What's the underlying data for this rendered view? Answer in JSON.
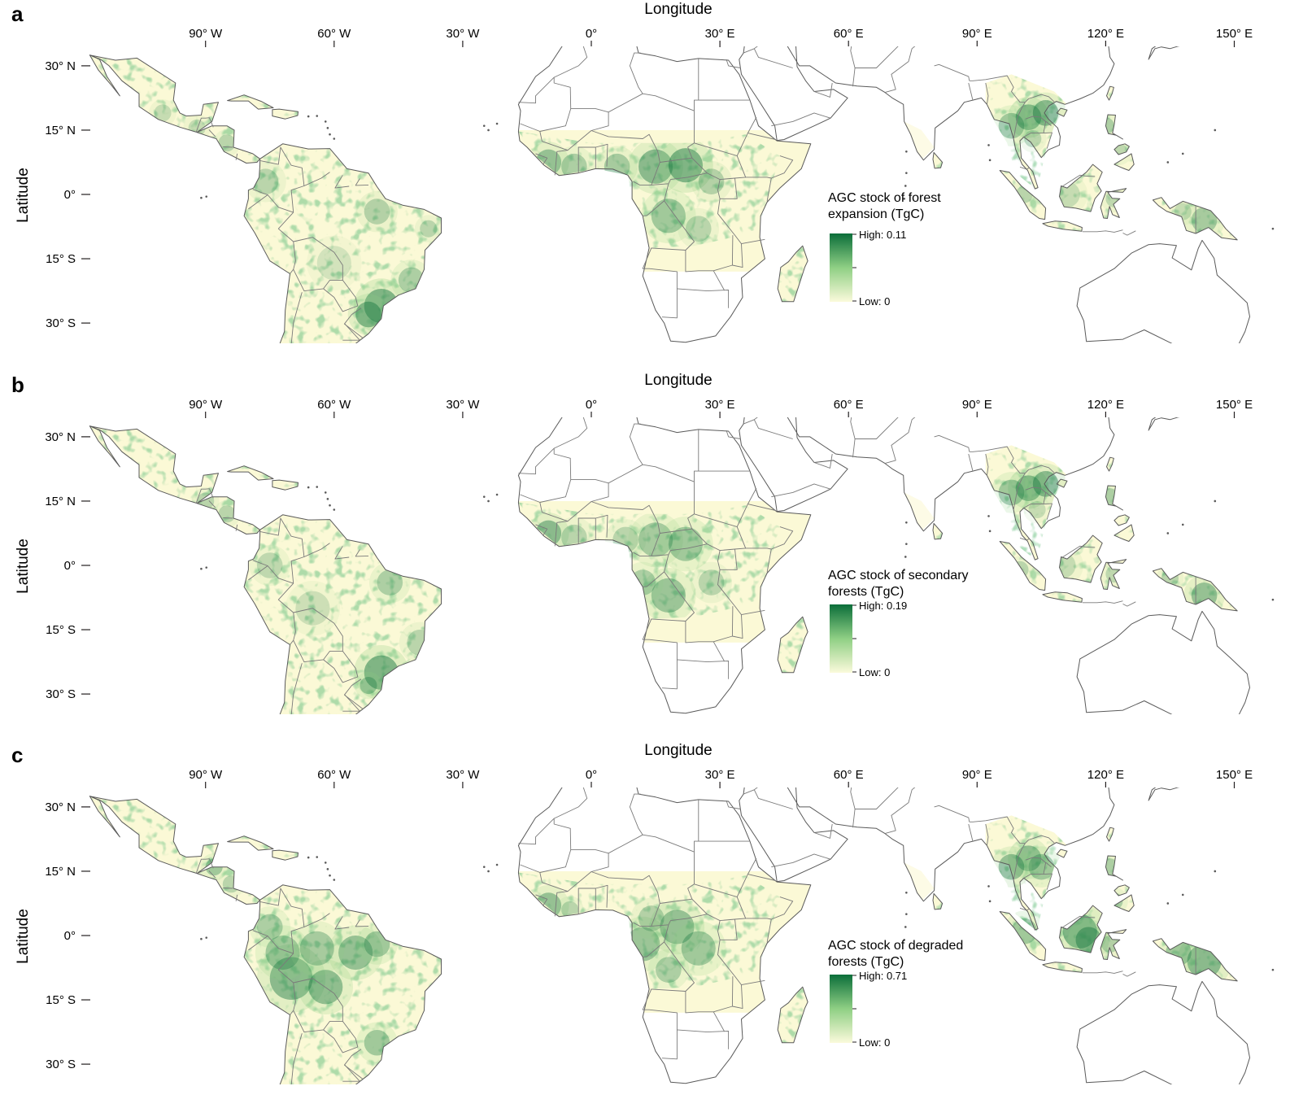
{
  "x_axis_title": "Longitude",
  "y_axis_title": "Latitude",
  "lon_ticks": [
    {
      "lon": -90,
      "label": "90° W"
    },
    {
      "lon": -60,
      "label": "60° W"
    },
    {
      "lon": -30,
      "label": "30° W"
    },
    {
      "lon": 0,
      "label": "0°"
    },
    {
      "lon": 30,
      "label": "30° E"
    },
    {
      "lon": 60,
      "label": "60° E"
    },
    {
      "lon": 90,
      "label": "90° E"
    },
    {
      "lon": 120,
      "label": "120° E"
    },
    {
      "lon": 150,
      "label": "150° E"
    }
  ],
  "lat_ticks": [
    {
      "lat": 30,
      "label": "30° N"
    },
    {
      "lat": 15,
      "label": "15° N"
    },
    {
      "lat": 0,
      "label": "0°"
    },
    {
      "lat": -15,
      "label": "15° S"
    },
    {
      "lat": -30,
      "label": "30° S"
    }
  ],
  "colors": {
    "land_base": "#fbf9d6",
    "low": "#fbfadb",
    "mid": "#8fcf84",
    "high": "#0b6e3a",
    "border": "#7a7a7a",
    "outline": "#5a5a5a"
  },
  "panels": [
    {
      "letter": "a",
      "legend_title_1": "AGC stock of forest",
      "legend_title_2": "expansion (TgC)",
      "high_label": "High: 0.11",
      "low_label": "Low: 0",
      "high_value": 0.11,
      "low_value": 0
    },
    {
      "letter": "b",
      "legend_title_1": "AGC stock of secondary",
      "legend_title_2": "forests (TgC)",
      "high_label": "High: 0.19",
      "low_label": "Low: 0",
      "high_value": 0.19,
      "low_value": 0
    },
    {
      "letter": "c",
      "legend_title_1": "AGC stock of degraded",
      "legend_title_2": "forests (TgC)",
      "high_label": "High: 0.71",
      "low_label": "Low: 0",
      "high_value": 0.71,
      "low_value": 0
    }
  ]
}
